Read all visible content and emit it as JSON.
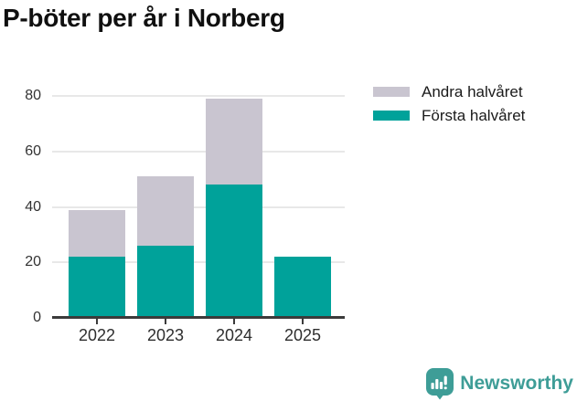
{
  "title": "P-böter per år i Norberg",
  "chart_data": {
    "type": "bar",
    "stacked": true,
    "title": "P-böter per år i Norberg",
    "xlabel": "",
    "ylabel": "",
    "categories": [
      "2022",
      "2023",
      "2024",
      "2025"
    ],
    "series": [
      {
        "name": "Första halvåret",
        "key": "forsta-halvaret",
        "color": "#00a29a",
        "values": [
          22,
          26,
          48,
          22
        ]
      },
      {
        "name": "Andra halvåret",
        "key": "andra-halvaret",
        "color": "#c9c5d0",
        "values": [
          17,
          25,
          31,
          0
        ]
      }
    ],
    "totals": [
      39,
      51,
      79,
      22
    ],
    "ylim": [
      0,
      80
    ],
    "yticks": [
      0,
      20,
      40,
      60,
      80
    ],
    "grid": true,
    "legend_position": "top-right",
    "legend": [
      {
        "label": "Andra halvåret",
        "color": "#c9c5d0"
      },
      {
        "label": "Första halvåret",
        "color": "#00a29a"
      }
    ]
  },
  "footer": {
    "brand": "Newsworthy",
    "brand_color": "#3e9d97",
    "logo_icon": "bar-chart-speech-bubble"
  }
}
